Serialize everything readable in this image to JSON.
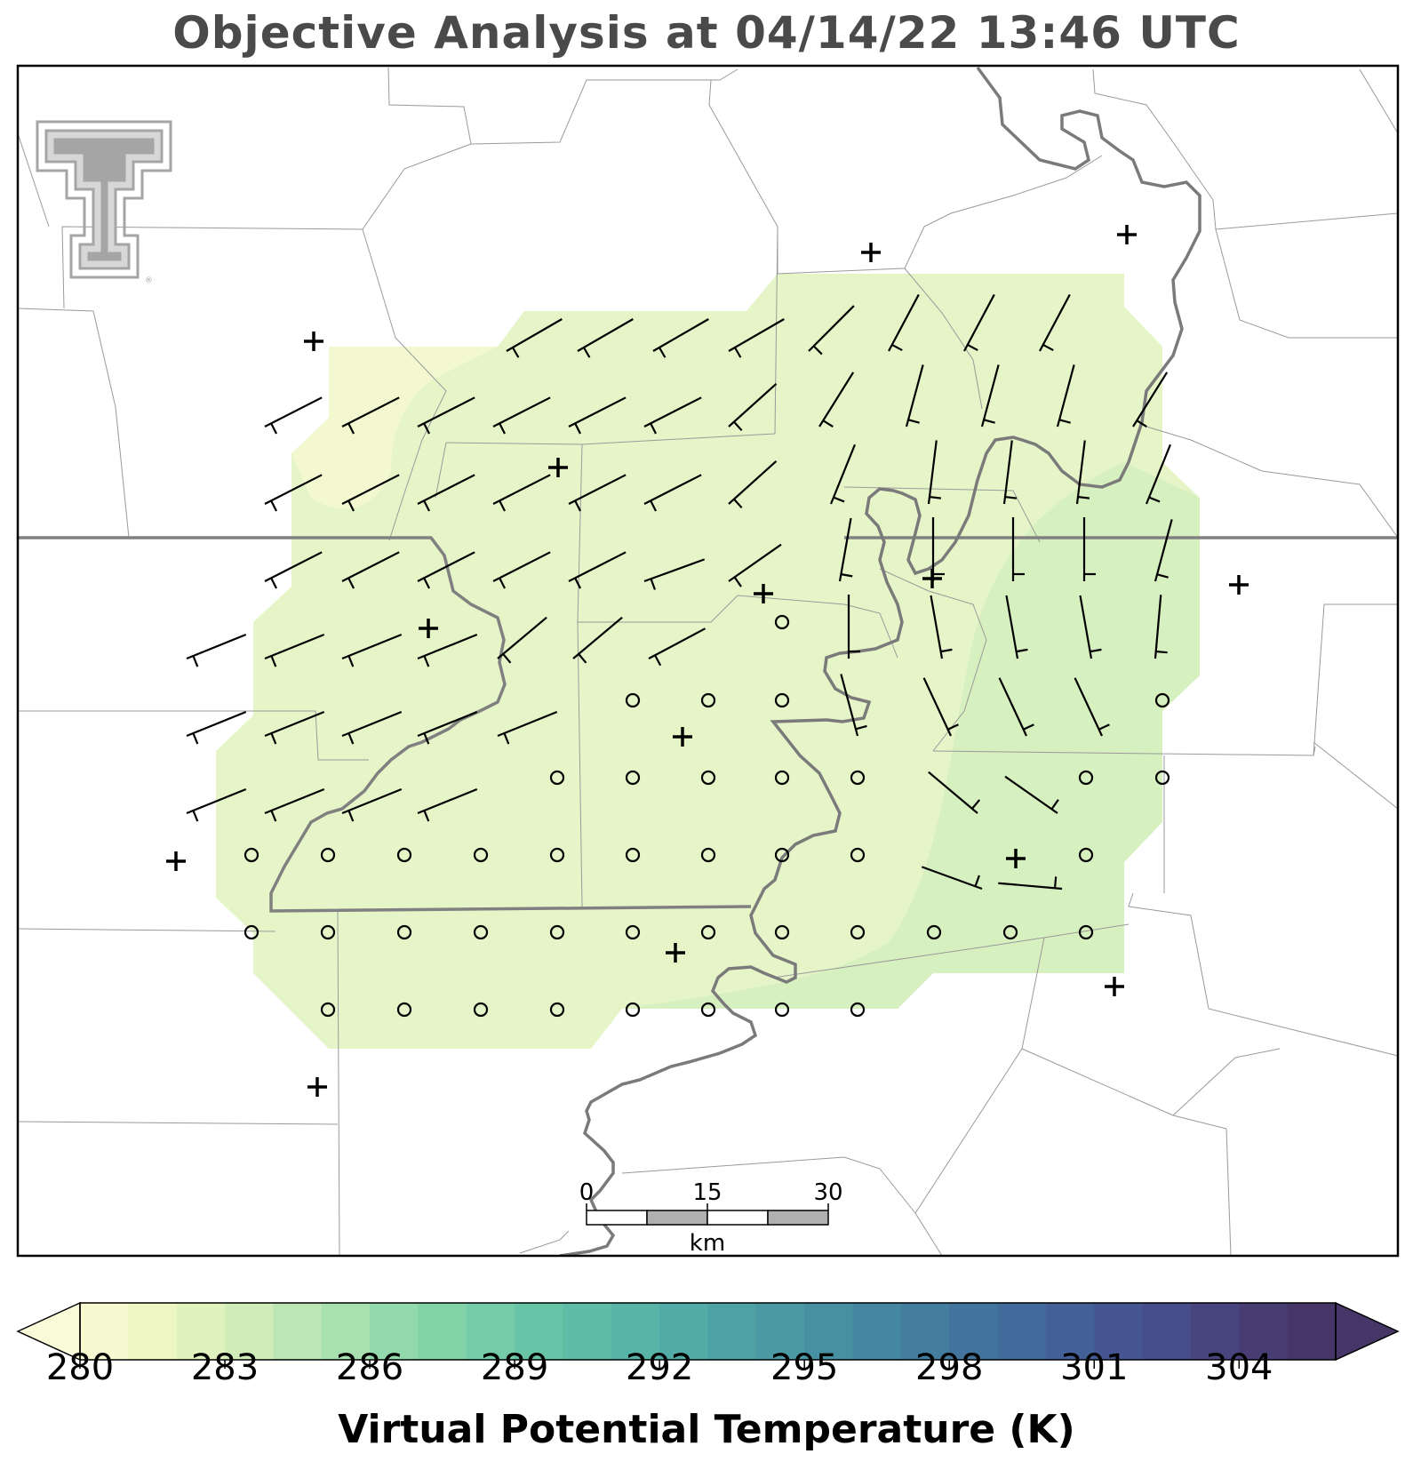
{
  "title": "Objective Analysis at 04/14/22 13:46 UTC",
  "colorbar": {
    "label": "Virtual Potential Temperature (K)",
    "ticks": [
      "280",
      "283",
      "286",
      "289",
      "292",
      "295",
      "298",
      "301",
      "304"
    ],
    "min": 280,
    "max": 306,
    "step": 1,
    "extend": "both",
    "colormap": "crest (light yellow to dark purple)",
    "colors": [
      "#f7f9d0",
      "#eef7c4",
      "#e0f2bd",
      "#cfecb9",
      "#bde6b5",
      "#a8e0b0",
      "#92d9ab",
      "#82d2a8",
      "#74cba7",
      "#68c4a7",
      "#5fbca7",
      "#58b4a6",
      "#52aba5",
      "#4ea2a4",
      "#4a99a3",
      "#4790a2",
      "#4587a0",
      "#437e9f",
      "#42749d",
      "#426a9b",
      "#436098",
      "#455693",
      "#474c8a",
      "#47447e",
      "#473d72",
      "#463668"
    ],
    "under_color": "#f9fbd8",
    "over_color": "#463668"
  },
  "scale_bar": {
    "labels": [
      "0",
      "15",
      "30"
    ],
    "unit": "km"
  },
  "logo": {
    "name": "texas-tech-double-t-logo",
    "color": "#a5a5a5"
  },
  "legend_symbols": {
    "station": "plus",
    "calm_wind": "circle",
    "wind": "barb"
  },
  "colors": {
    "state_boundary": "#808080",
    "county_boundary": "#9a9a9a",
    "river": "#7a7a7a"
  },
  "map_data": {
    "analysis_field": "virtual potential temperature (K)",
    "analysis_range_estimate": [
      280.5,
      283.5
    ],
    "station_count": 14,
    "wind_barb_count": 96,
    "calm_point_count": 45
  }
}
